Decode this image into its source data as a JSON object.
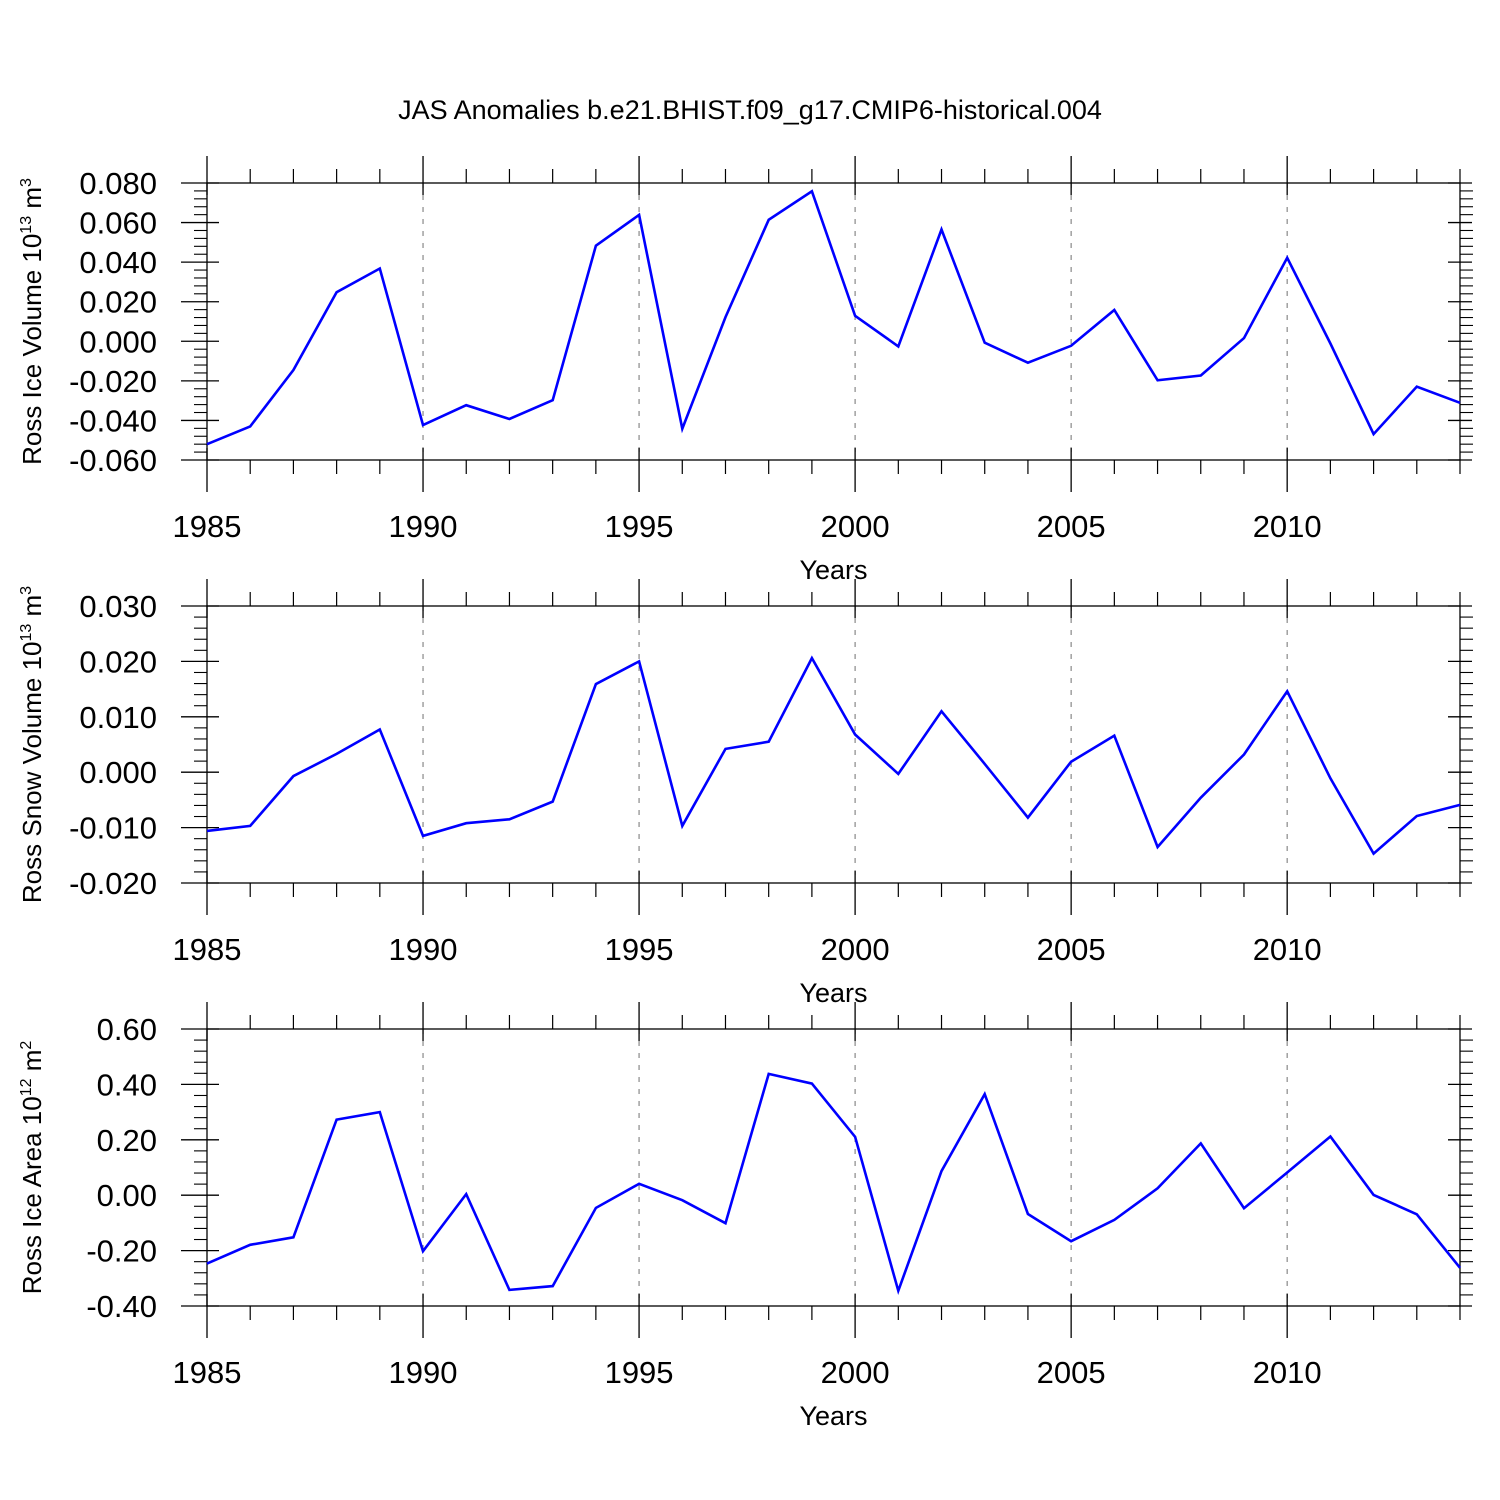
{
  "title": "JAS Anomalies b.e21.BHIST.f09_g17.CMIP6-historical.004",
  "colors": {
    "line": "#0000ff",
    "axis": "#000000",
    "grid": "#888888"
  },
  "chart_data": [
    {
      "type": "line",
      "ylabel_main": "Ross Ice Volume 10",
      "ylabel_exp": "13",
      "ylabel_unit": " m",
      "ylabel_unit_exp": "3",
      "xlabel": "Years",
      "xlim": [
        1985,
        2014
      ],
      "ylim": [
        -0.06,
        0.08
      ],
      "xticks": [
        1985,
        1990,
        1995,
        2000,
        2005,
        2010
      ],
      "xtick_labels": [
        "1985",
        "1990",
        "1995",
        "2000",
        "2005",
        "2010"
      ],
      "yticks": [
        -0.06,
        -0.04,
        -0.02,
        0.0,
        0.02,
        0.04,
        0.06,
        0.08
      ],
      "ytick_labels": [
        "-0.060",
        "-0.040",
        "-0.020",
        "0.000",
        "0.020",
        "0.040",
        "0.060",
        "0.080"
      ],
      "vgrid": [
        1990,
        1995,
        2000,
        2005,
        2010
      ],
      "x": [
        1985,
        1986,
        1987,
        1988,
        1989,
        1990,
        1991,
        1992,
        1993,
        1994,
        1995,
        1996,
        1997,
        1998,
        1999,
        2000,
        2001,
        2002,
        2003,
        2004,
        2005,
        2006,
        2007,
        2008,
        2009,
        2010,
        2011,
        2012,
        2013,
        2014
      ],
      "values": [
        -0.052,
        -0.043,
        -0.0145,
        0.0248,
        0.0368,
        -0.0423,
        -0.0323,
        -0.0393,
        -0.0298,
        0.0483,
        0.0639,
        -0.0442,
        0.0122,
        0.0614,
        0.0758,
        0.0129,
        -0.0026,
        0.0565,
        -0.0007,
        -0.0108,
        -0.0023,
        0.0158,
        -0.0197,
        -0.0173,
        0.0016,
        0.0422,
        -0.0011,
        -0.0469,
        -0.0229,
        -0.0311
      ]
    },
    {
      "type": "line",
      "ylabel_main": "Ross Snow Volume 10",
      "ylabel_exp": "13",
      "ylabel_unit": " m",
      "ylabel_unit_exp": "3",
      "xlabel": "Years",
      "xlim": [
        1985,
        2014
      ],
      "ylim": [
        -0.02,
        0.03
      ],
      "xticks": [
        1985,
        1990,
        1995,
        2000,
        2005,
        2010
      ],
      "xtick_labels": [
        "1985",
        "1990",
        "1995",
        "2000",
        "2005",
        "2010"
      ],
      "yticks": [
        -0.02,
        -0.01,
        0.0,
        0.01,
        0.02,
        0.03
      ],
      "ytick_labels": [
        "-0.020",
        "-0.010",
        "0.000",
        "0.010",
        "0.020",
        "0.030"
      ],
      "vgrid": [
        1990,
        1995,
        2000,
        2005,
        2010
      ],
      "x": [
        1985,
        1986,
        1987,
        1988,
        1989,
        1990,
        1991,
        1992,
        1993,
        1994,
        1995,
        1996,
        1997,
        1998,
        1999,
        2000,
        2001,
        2002,
        2003,
        2004,
        2005,
        2006,
        2007,
        2008,
        2009,
        2010,
        2011,
        2012,
        2013,
        2014
      ],
      "values": [
        -0.0106,
        -0.0097,
        -0.0007,
        0.0033,
        0.0077,
        -0.0115,
        -0.0092,
        -0.0085,
        -0.0053,
        0.0159,
        0.02,
        -0.0097,
        0.0042,
        0.0055,
        0.0206,
        0.0068,
        -0.0003,
        0.011,
        0.0015,
        -0.0082,
        0.0019,
        0.0066,
        -0.0135,
        -0.0046,
        0.0032,
        0.0146,
        -0.0011,
        -0.0147,
        -0.0079,
        -0.0059
      ]
    },
    {
      "type": "line",
      "ylabel_main": "Ross Ice Area 10",
      "ylabel_exp": "12",
      "ylabel_unit": " m",
      "ylabel_unit_exp": "2",
      "xlabel": "Years",
      "xlim": [
        1985,
        2014
      ],
      "ylim": [
        -0.4,
        0.6
      ],
      "xticks": [
        1985,
        1990,
        1995,
        2000,
        2005,
        2010
      ],
      "xtick_labels": [
        "1985",
        "1990",
        "1995",
        "2000",
        "2005",
        "2010"
      ],
      "yticks": [
        -0.4,
        -0.2,
        0.0,
        0.2,
        0.4,
        0.6
      ],
      "ytick_labels": [
        "-0.40",
        "-0.20",
        "0.00",
        "0.20",
        "0.40",
        "0.60"
      ],
      "vgrid": [
        1990,
        1995,
        2000,
        2005,
        2010
      ],
      "x": [
        1985,
        1986,
        1987,
        1988,
        1989,
        1990,
        1991,
        1992,
        1993,
        1994,
        1995,
        1996,
        1997,
        1998,
        1999,
        2000,
        2001,
        2002,
        2003,
        2004,
        2005,
        2006,
        2007,
        2008,
        2009,
        2010,
        2011,
        2012,
        2013,
        2014
      ],
      "values": [
        -0.247,
        -0.179,
        -0.152,
        0.273,
        0.3,
        -0.202,
        0.004,
        -0.342,
        -0.328,
        -0.046,
        0.041,
        -0.018,
        -0.101,
        0.438,
        0.403,
        0.211,
        -0.345,
        0.087,
        0.365,
        -0.068,
        -0.166,
        -0.089,
        0.025,
        0.187,
        -0.047,
        0.082,
        0.212,
        0.001,
        -0.069,
        -0.262
      ]
    }
  ]
}
